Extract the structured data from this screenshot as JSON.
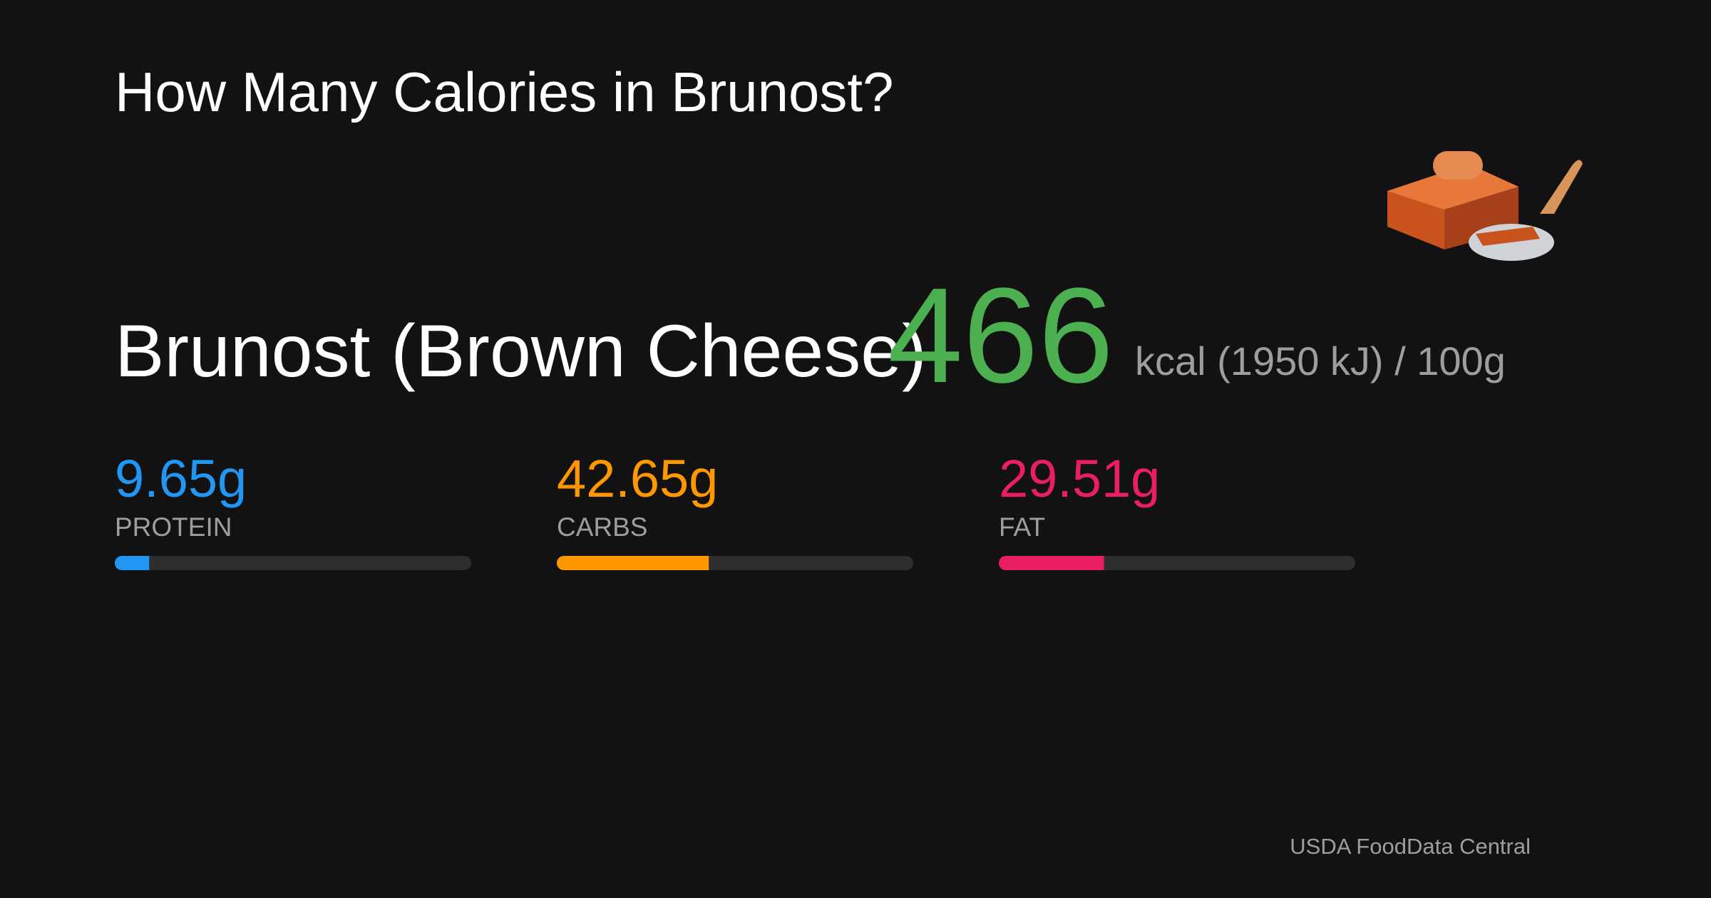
{
  "header": {
    "title": "How Many Calories in Brunost?"
  },
  "food": {
    "name": "Brunost (Brown Cheese)",
    "calories": 466,
    "unit_text": "kcal (1950 kJ) / 100g",
    "calories_color": "#4caf50"
  },
  "macros": {
    "xlim": [
      0,
      100
    ],
    "items": [
      {
        "value": 9.65,
        "label": "9.65g",
        "name": "PROTEIN",
        "color": "#2196f3"
      },
      {
        "value": 42.65,
        "label": "42.65g",
        "name": "CARBS",
        "color": "#ff9800"
      },
      {
        "value": 29.51,
        "label": "29.51g",
        "name": "FAT",
        "color": "#e91e63"
      }
    ]
  },
  "footer": {
    "source": "USDA FoodData Central"
  }
}
